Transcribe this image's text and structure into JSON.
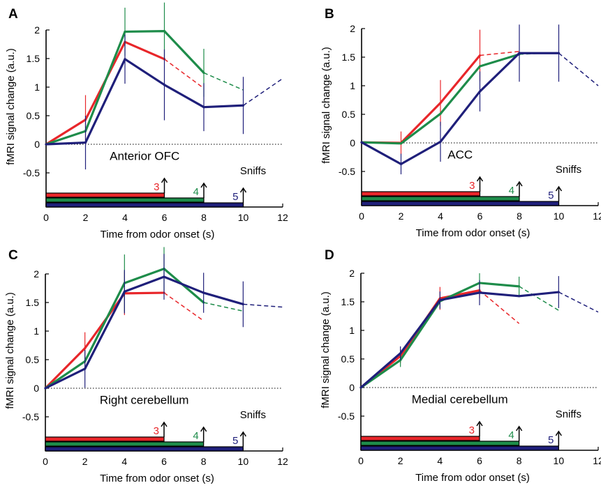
{
  "chart_data": [
    {
      "type": "line",
      "panel_letter": "A",
      "title": "Anterior OFC",
      "xlabel": "Time from odor onset (s)",
      "ylabel": "fMRI signal change (a.u.)",
      "xlim": [
        0,
        12
      ],
      "ylim": [
        -0.7,
        2
      ],
      "x_ticks": [
        "0",
        "2",
        "4",
        "6",
        "8",
        "10",
        "12"
      ],
      "y_ticks": [
        "-0.5",
        "0",
        "0.5",
        "1",
        "1.5",
        "2"
      ],
      "baseline": 0,
      "series": [
        {
          "label": "3",
          "color": "#e8262a",
          "x": [
            0,
            2,
            4,
            6
          ],
          "y": [
            0,
            0.43,
            1.79,
            1.49
          ],
          "dashed_x": [
            6,
            8
          ],
          "dashed_y": [
            1.49,
            0.98
          ],
          "err": [
            0,
            0.43,
            0,
            0
          ],
          "bar_end": 6
        },
        {
          "label": "4",
          "color": "#1e8c4a",
          "x": [
            0,
            2,
            4,
            6,
            8
          ],
          "y": [
            0,
            0.23,
            1.97,
            1.98,
            1.25
          ],
          "dashed_x": [
            8,
            10
          ],
          "dashed_y": [
            1.25,
            0.95
          ],
          "err": [
            0,
            0,
            0.42,
            0.5,
            0.42
          ],
          "bar_end": 8
        },
        {
          "label": "5",
          "color": "#1f1f7a",
          "x": [
            0,
            2,
            4,
            6,
            8,
            10
          ],
          "y": [
            0,
            0.03,
            1.49,
            1.04,
            0.65,
            0.68
          ],
          "dashed_x": [
            10,
            12
          ],
          "dashed_y": [
            0.68,
            1.15
          ],
          "err": [
            0,
            0.47,
            0.43,
            0.62,
            0.42,
            0.5
          ],
          "bar_end": 10
        }
      ],
      "sniffs_label": "Sniffs"
    },
    {
      "type": "line",
      "panel_letter": "B",
      "title": "ACC",
      "xlabel": "Time from odor onset (s)",
      "ylabel": "fMRI signal change (a.u.)",
      "xlim": [
        0,
        12
      ],
      "ylim": [
        -0.7,
        2
      ],
      "x_ticks": [
        "0",
        "2",
        "4",
        "6",
        "8",
        "10",
        "12"
      ],
      "y_ticks": [
        "-0.5",
        "0",
        "0.5",
        "1",
        "1.5",
        "2"
      ],
      "baseline": 0,
      "series": [
        {
          "label": "3",
          "color": "#e8262a",
          "x": [
            0,
            2,
            4,
            6
          ],
          "y": [
            0.01,
            0.0,
            0.7,
            1.53
          ],
          "dashed_x": [
            6,
            8
          ],
          "dashed_y": [
            1.53,
            1.6
          ],
          "err": [
            0,
            0.2,
            0.4,
            0.45
          ],
          "bar_end": 6
        },
        {
          "label": "4",
          "color": "#1e8c4a",
          "x": [
            0,
            2,
            4,
            6,
            8
          ],
          "y": [
            0.01,
            -0.01,
            0.51,
            1.34,
            1.55
          ],
          "dashed_x": [
            8,
            10
          ],
          "dashed_y": [
            1.55,
            1.58
          ],
          "err": [
            0,
            0,
            0,
            0,
            0
          ],
          "bar_end": 8
        },
        {
          "label": "5",
          "color": "#1f1f7a",
          "x": [
            0,
            2,
            4,
            6,
            8,
            10
          ],
          "y": [
            0.01,
            -0.37,
            0.02,
            0.9,
            1.57,
            1.57
          ],
          "dashed_x": [
            10,
            12
          ],
          "dashed_y": [
            1.57,
            1.0
          ],
          "err": [
            0,
            0.18,
            0.35,
            0.35,
            0.5,
            0.5
          ],
          "bar_end": 10
        }
      ],
      "sniffs_label": "Sniffs"
    },
    {
      "type": "line",
      "panel_letter": "C",
      "title": "Right cerebellum",
      "xlabel": "Time from odor onset (s)",
      "ylabel": "fMRI signal change (a.u.)",
      "xlim": [
        0,
        12
      ],
      "ylim": [
        -0.7,
        2
      ],
      "x_ticks": [
        "0",
        "2",
        "4",
        "6",
        "8",
        "10",
        "12"
      ],
      "y_ticks": [
        "-0.5",
        "0",
        "0.5",
        "1",
        "1.5",
        "2"
      ],
      "baseline": 0,
      "series": [
        {
          "label": "3",
          "color": "#e8262a",
          "x": [
            0,
            2,
            4,
            6
          ],
          "y": [
            0,
            0.7,
            1.66,
            1.67
          ],
          "dashed_x": [
            6,
            8
          ],
          "dashed_y": [
            1.67,
            1.18
          ],
          "err": [
            0,
            0.28,
            0.38,
            0
          ],
          "bar_end": 6
        },
        {
          "label": "4",
          "color": "#1e8c4a",
          "x": [
            0,
            2,
            4,
            6,
            8
          ],
          "y": [
            0,
            0.47,
            1.84,
            2.09,
            1.5
          ],
          "dashed_x": [
            8,
            10
          ],
          "dashed_y": [
            1.5,
            1.35
          ],
          "err": [
            0,
            0,
            0.5,
            0.38,
            0
          ],
          "bar_end": 8
        },
        {
          "label": "5",
          "color": "#1f1f7a",
          "x": [
            0,
            2,
            4,
            6,
            8,
            10
          ],
          "y": [
            0,
            0.34,
            1.69,
            1.95,
            1.67,
            1.47
          ],
          "dashed_x": [
            10,
            12
          ],
          "dashed_y": [
            1.47,
            1.42
          ],
          "err": [
            0,
            0.33,
            0.38,
            0.4,
            0.35,
            0.4
          ],
          "bar_end": 10
        }
      ],
      "sniffs_label": "Sniffs"
    },
    {
      "type": "line",
      "panel_letter": "D",
      "title": "Medial cerebellum",
      "xlabel": "Time from odor onset (s)",
      "ylabel": "fMRI signal change (a.u.)",
      "xlim": [
        0,
        12
      ],
      "ylim": [
        -0.7,
        2
      ],
      "x_ticks": [
        "0",
        "2",
        "4",
        "6",
        "8",
        "10",
        "12"
      ],
      "y_ticks": [
        "-0.5",
        "0",
        "0.5",
        "1",
        "1.5",
        "2"
      ],
      "baseline": 0,
      "series": [
        {
          "label": "3",
          "color": "#e8262a",
          "x": [
            0,
            2,
            4,
            6
          ],
          "y": [
            0,
            0.55,
            1.56,
            1.7
          ],
          "dashed_x": [
            6,
            8
          ],
          "dashed_y": [
            1.7,
            1.12
          ],
          "err": [
            0,
            0.12,
            0.2,
            0.14
          ],
          "bar_end": 6
        },
        {
          "label": "4",
          "color": "#1e8c4a",
          "x": [
            0,
            2,
            4,
            6,
            8
          ],
          "y": [
            0,
            0.48,
            1.51,
            1.83,
            1.77
          ],
          "dashed_x": [
            8,
            10
          ],
          "dashed_y": [
            1.77,
            1.35
          ],
          "err": [
            0,
            0.12,
            0,
            0.17,
            0.17
          ],
          "bar_end": 8
        },
        {
          "label": "5",
          "color": "#1f1f7a",
          "x": [
            0,
            2,
            4,
            6,
            8,
            10
          ],
          "y": [
            0,
            0.6,
            1.53,
            1.66,
            1.6,
            1.67
          ],
          "dashed_x": [
            10,
            12
          ],
          "dashed_y": [
            1.67,
            1.32
          ],
          "err": [
            0,
            0.12,
            0.15,
            0.22,
            0,
            0.28
          ],
          "bar_end": 10
        }
      ],
      "sniffs_label": "Sniffs"
    }
  ]
}
